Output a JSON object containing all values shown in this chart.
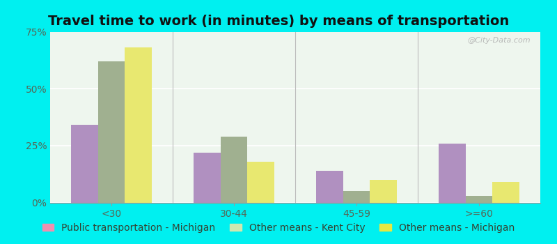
{
  "title": "Travel time to work (in minutes) by means of transportation",
  "categories": [
    "<30",
    "30-44",
    "45-59",
    ">=60"
  ],
  "series": {
    "Public transportation - Michigan": [
      34,
      22,
      14,
      26
    ],
    "Other means - Kent City": [
      62,
      29,
      5,
      3
    ],
    "Other means - Michigan": [
      68,
      18,
      10,
      9
    ]
  },
  "bar_colors": {
    "Public transportation - Michigan": "#b090c0",
    "Other means - Kent City": "#a0b090",
    "Other means - Michigan": "#e8e870"
  },
  "legend_marker_colors": {
    "Public transportation - Michigan": "#f090b0",
    "Other means - Kent City": "#d0e8b0",
    "Other means - Michigan": "#e8e840"
  },
  "background_color": "#00f0f0",
  "plot_bg": "#e8f4e8",
  "ylim": [
    0,
    75
  ],
  "yticks": [
    0,
    25,
    50,
    75
  ],
  "ytick_labels": [
    "0%",
    "25%",
    "50%",
    "75%"
  ],
  "title_fontsize": 14,
  "tick_fontsize": 10,
  "legend_fontsize": 10,
  "bar_width": 0.22,
  "watermark": "@City-Data.com"
}
